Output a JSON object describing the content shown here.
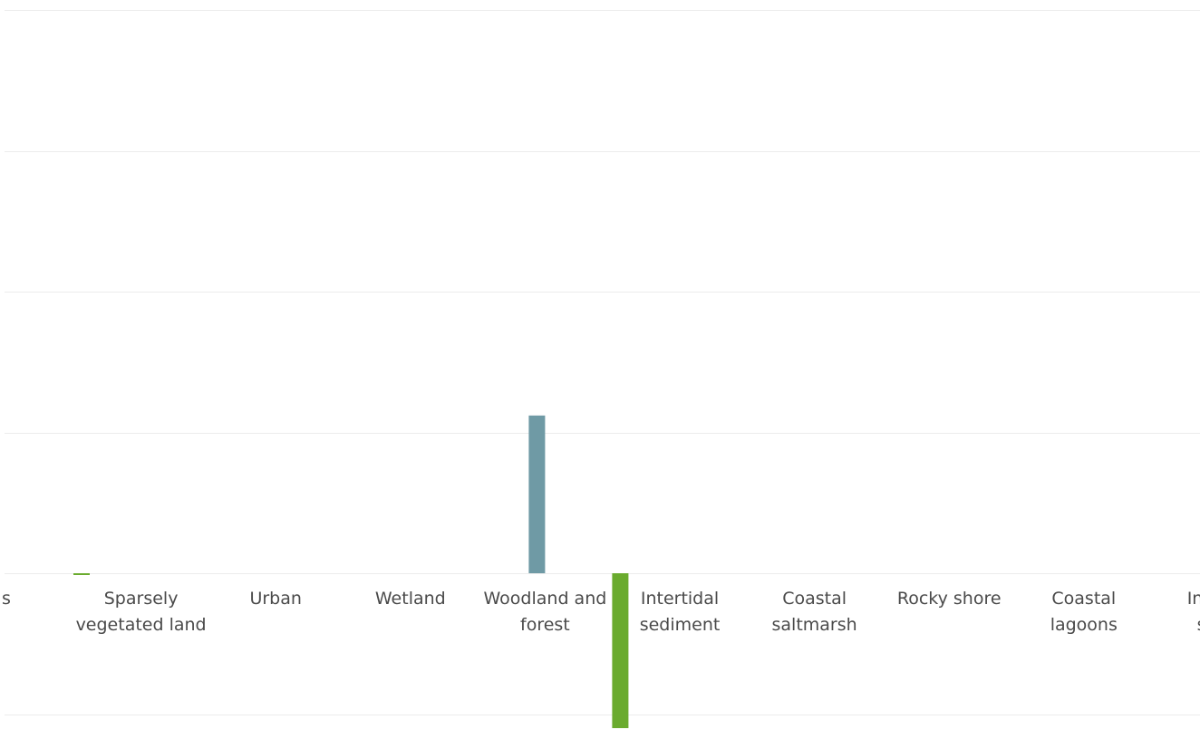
{
  "chart_data": {
    "type": "bar",
    "categories": [
      "s",
      "Sparsely vegetated land",
      "Urban",
      "Wetland",
      "Woodland and forest",
      "Intertidal sediment",
      "Coastal saltmarsh",
      "Rocky shore",
      "Coastal lagoons",
      "Intertid struc"
    ],
    "category_label_lines": [
      [
        "s"
      ],
      [
        "Sparsely",
        "vegetated land"
      ],
      [
        "Urban"
      ],
      [
        "Wetland"
      ],
      [
        "Woodland and",
        "forest"
      ],
      [
        "Intertidal",
        "sediment"
      ],
      [
        "Coastal",
        "saltmarsh"
      ],
      [
        "Rocky shore"
      ],
      [
        "Coastal",
        "lagoons"
      ],
      [
        "Intertid",
        "struc"
      ]
    ],
    "series": [
      {
        "color": "#6f9aa5",
        "values": [
          0,
          0,
          0,
          0,
          1.12,
          0,
          0,
          0,
          0,
          0
        ]
      },
      {
        "color": "#6aab2e",
        "values": [
          -0.01,
          0,
          0,
          0,
          -1.1,
          0,
          0,
          0,
          0,
          0
        ]
      }
    ],
    "ylim": [
      -1.0,
      4.0
    ],
    "grid": true,
    "legend": "none",
    "title": "",
    "xlabel": "",
    "ylabel": ""
  }
}
